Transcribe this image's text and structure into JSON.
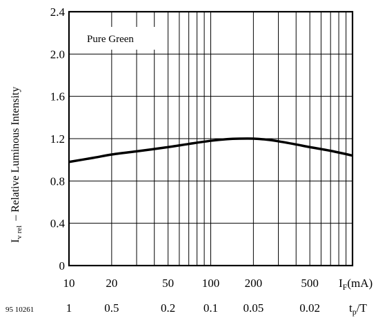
{
  "chart_data": {
    "type": "line",
    "annotation": "Pure Green",
    "figure_code": "95 10261",
    "ylabel": {
      "symbol": "I",
      "subscript": "v rel",
      "text": "– Relative Luminous Intensity"
    },
    "xlabel": {
      "symbol": "I",
      "subscript": "F",
      "unit": "(mA)"
    },
    "x2label": {
      "symbol": "t",
      "subscript": "p",
      "suffix": "/T"
    },
    "x_scale": "log",
    "xlim": [
      10,
      1000
    ],
    "ylim": [
      0,
      2.4
    ],
    "grid": true,
    "y_ticks": [
      {
        "value": 0,
        "label": "0"
      },
      {
        "value": 0.4,
        "label": "0.4"
      },
      {
        "value": 0.8,
        "label": "0.8"
      },
      {
        "value": 1.2,
        "label": "1.2"
      },
      {
        "value": 1.6,
        "label": "1.6"
      },
      {
        "value": 2.0,
        "label": "2.0"
      },
      {
        "value": 2.4,
        "label": "2.4"
      }
    ],
    "x_ticks": [
      {
        "value": 10,
        "label": "10"
      },
      {
        "value": 20,
        "label": "20"
      },
      {
        "value": 50,
        "label": "50"
      },
      {
        "value": 100,
        "label": "100"
      },
      {
        "value": 200,
        "label": "200"
      },
      {
        "value": 500,
        "label": "500"
      }
    ],
    "x2_ticks": [
      {
        "value": 10,
        "label": "1"
      },
      {
        "value": 20,
        "label": "0.5"
      },
      {
        "value": 50,
        "label": "0.2"
      },
      {
        "value": 100,
        "label": "0.1"
      },
      {
        "value": 200,
        "label": "0.05"
      },
      {
        "value": 500,
        "label": "0.02"
      }
    ],
    "series": [
      {
        "x": [
          10,
          15,
          20,
          30,
          50,
          70,
          100,
          130,
          160,
          200,
          250,
          300,
          400,
          500,
          700,
          1000
        ],
        "y": [
          0.98,
          1.02,
          1.05,
          1.08,
          1.12,
          1.15,
          1.18,
          1.195,
          1.2,
          1.2,
          1.19,
          1.175,
          1.145,
          1.12,
          1.085,
          1.04
        ]
      }
    ]
  }
}
